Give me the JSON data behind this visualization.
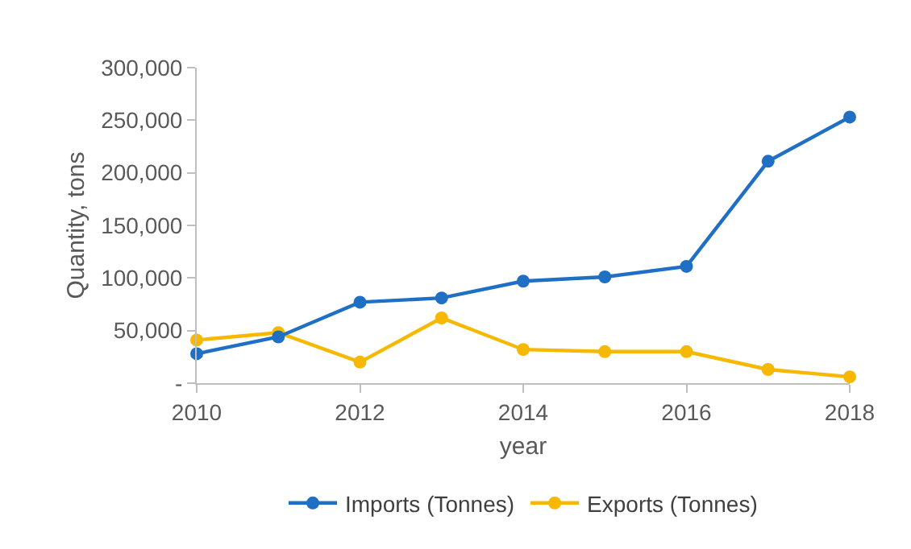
{
  "chart_data": {
    "type": "line",
    "xlabel": "year",
    "ylabel": "Quantity, tons",
    "x": [
      2010,
      2011,
      2012,
      2013,
      2014,
      2015,
      2016,
      2017,
      2018
    ],
    "series": [
      {
        "name": "Imports (Tonnes)",
        "color": "#1f6fc4",
        "values": [
          28000,
          44000,
          77000,
          81000,
          97000,
          101000,
          111000,
          211000,
          253000
        ]
      },
      {
        "name": "Exports (Tonnes)",
        "color": "#f6b800",
        "values": [
          41000,
          48000,
          20000,
          62000,
          32000,
          30000,
          30000,
          13000,
          6000
        ]
      }
    ],
    "xlim": [
      2010,
      2018
    ],
    "xticks": [
      2010,
      2012,
      2014,
      2016,
      2018
    ],
    "ylim": [
      0,
      300000
    ],
    "yticks": [
      {
        "value": 0,
        "label": "-"
      },
      {
        "value": 50000,
        "label": "50,000"
      },
      {
        "value": 100000,
        "label": "100,000"
      },
      {
        "value": 150000,
        "label": "150,000"
      },
      {
        "value": 200000,
        "label": "200,000"
      },
      {
        "value": 250000,
        "label": "250,000"
      },
      {
        "value": 300000,
        "label": "300,000"
      }
    ],
    "grid": false,
    "legend": "bottom",
    "marker": "circle",
    "line_style": "solid"
  }
}
